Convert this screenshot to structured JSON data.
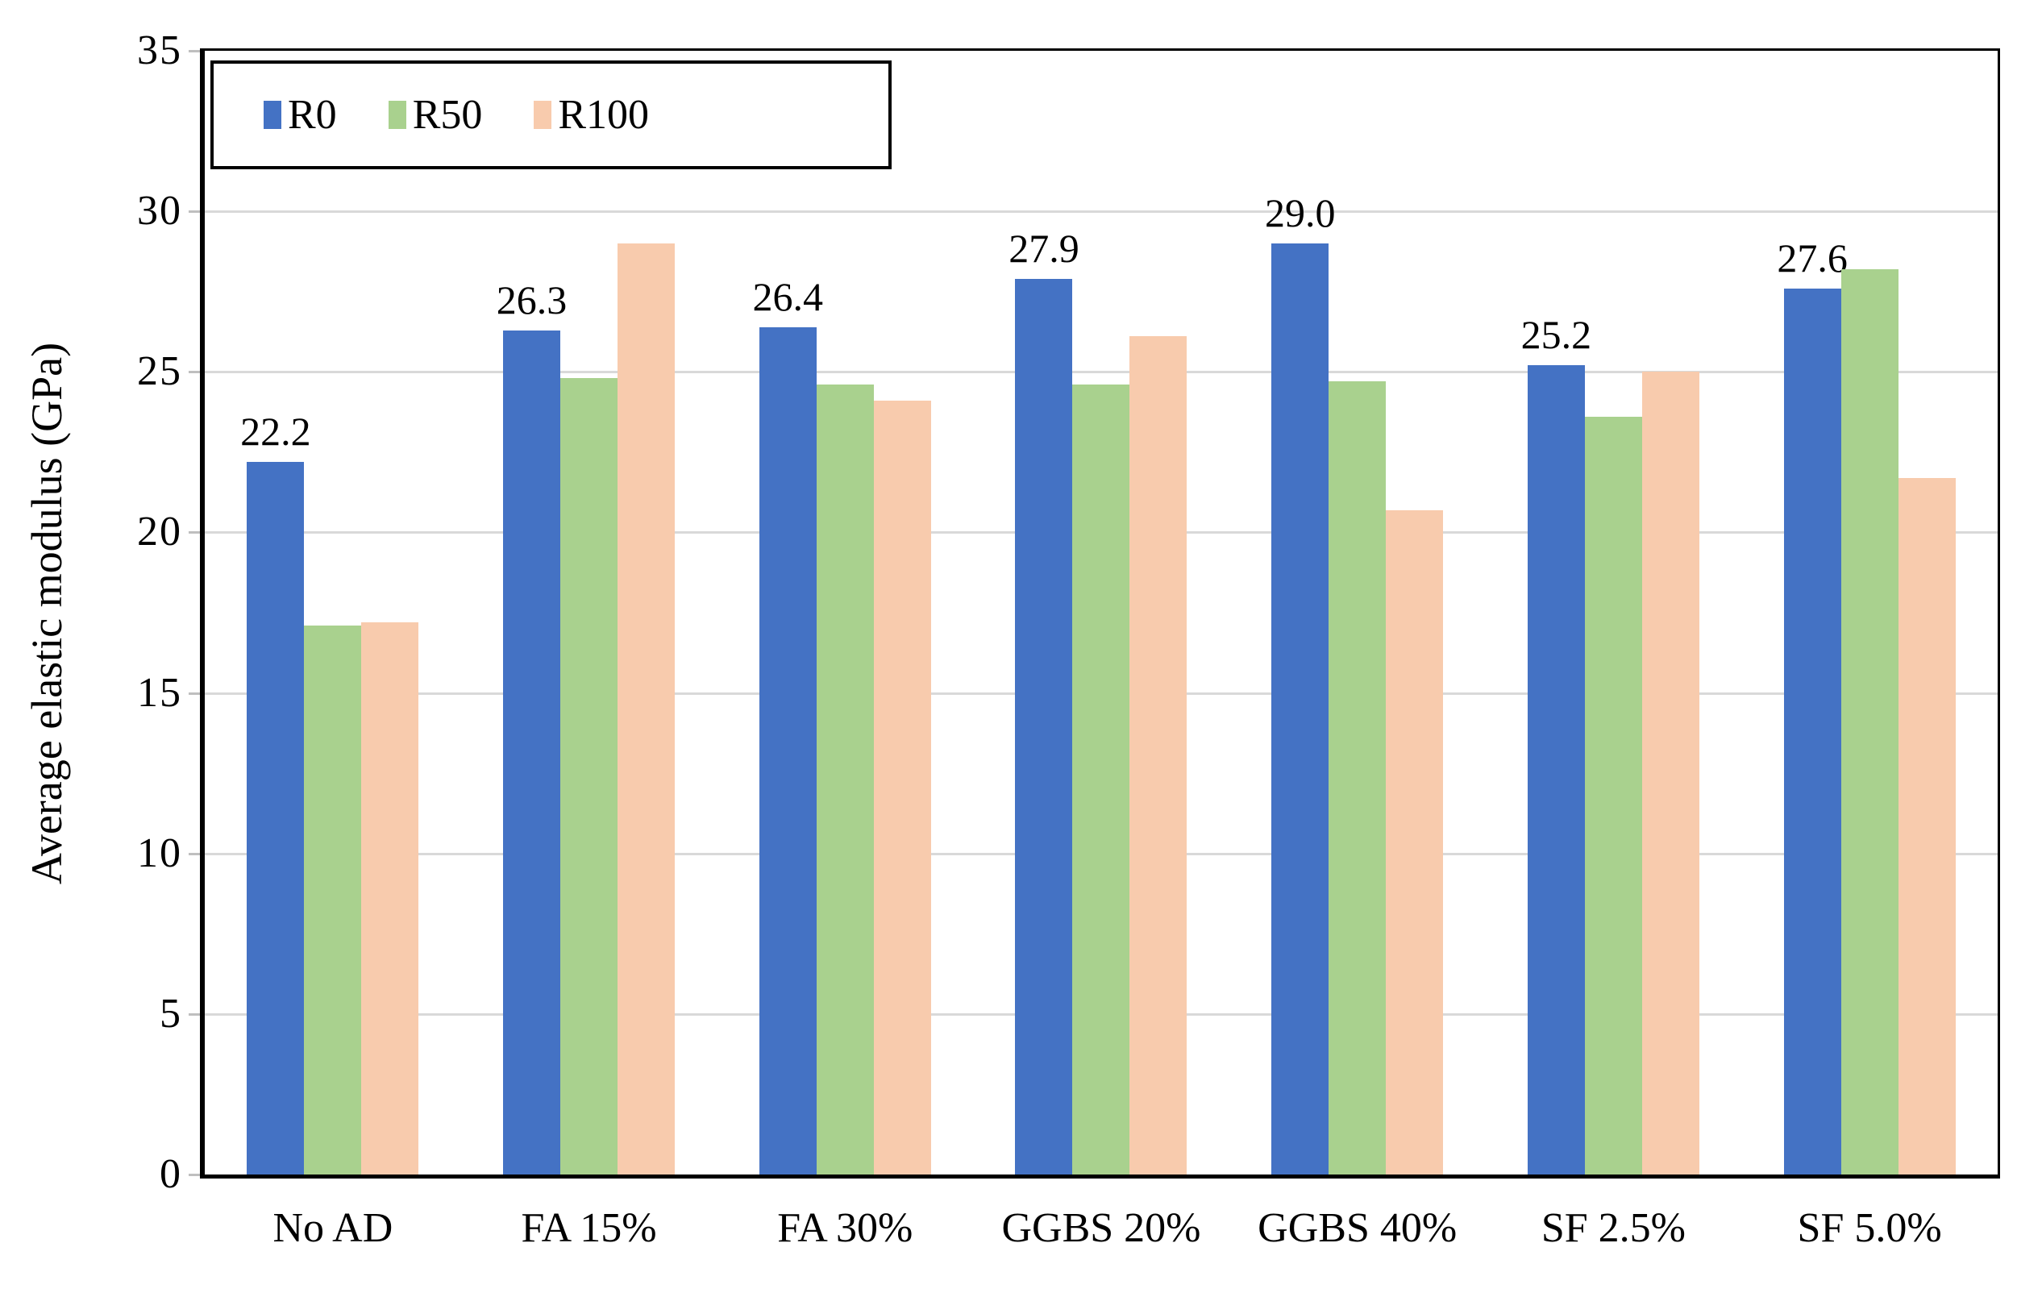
{
  "figure": {
    "background": "#ffffff",
    "text_color": "#000000"
  },
  "colors": {
    "r0_blue": "#4472C4",
    "r50_green": "#A9D18E",
    "r100_peach": "#F8CBAD",
    "gridline": "#D9D9D9",
    "axis": "#000000",
    "legend_border": "#000000"
  },
  "chart_data": {
    "type": "bar",
    "title": "",
    "xlabel": "",
    "ylabel": "Average elastic modulus (GPa)",
    "ylim": [
      0,
      35
    ],
    "yticks": [
      0,
      5,
      10,
      15,
      20,
      25,
      30,
      35
    ],
    "grid": "horizontal gridlines on, light gray",
    "legend_position": "top-left inside plot, boxed",
    "categories": [
      "No AD",
      "FA 15%",
      "FA 30%",
      "GGBS 20%",
      "GGBS 40%",
      "SF 2.5%",
      "SF 5.0%"
    ],
    "series": [
      {
        "name": "R0",
        "color": "#4472C4",
        "values": [
          22.2,
          26.3,
          26.4,
          27.9,
          29.0,
          25.2,
          27.6
        ],
        "data_labels": [
          "22.2",
          "26.3",
          "26.4",
          "27.9",
          "29.0",
          "25.2",
          "27.6"
        ],
        "show_data_labels": true
      },
      {
        "name": "R50",
        "color": "#A9D18E",
        "values": [
          17.1,
          24.8,
          24.6,
          24.6,
          24.7,
          23.6,
          28.2
        ],
        "show_data_labels": false
      },
      {
        "name": "R100",
        "color": "#F8CBAD",
        "values": [
          17.2,
          29.0,
          24.1,
          26.1,
          20.7,
          25.0,
          21.7
        ],
        "show_data_labels": false
      }
    ]
  }
}
